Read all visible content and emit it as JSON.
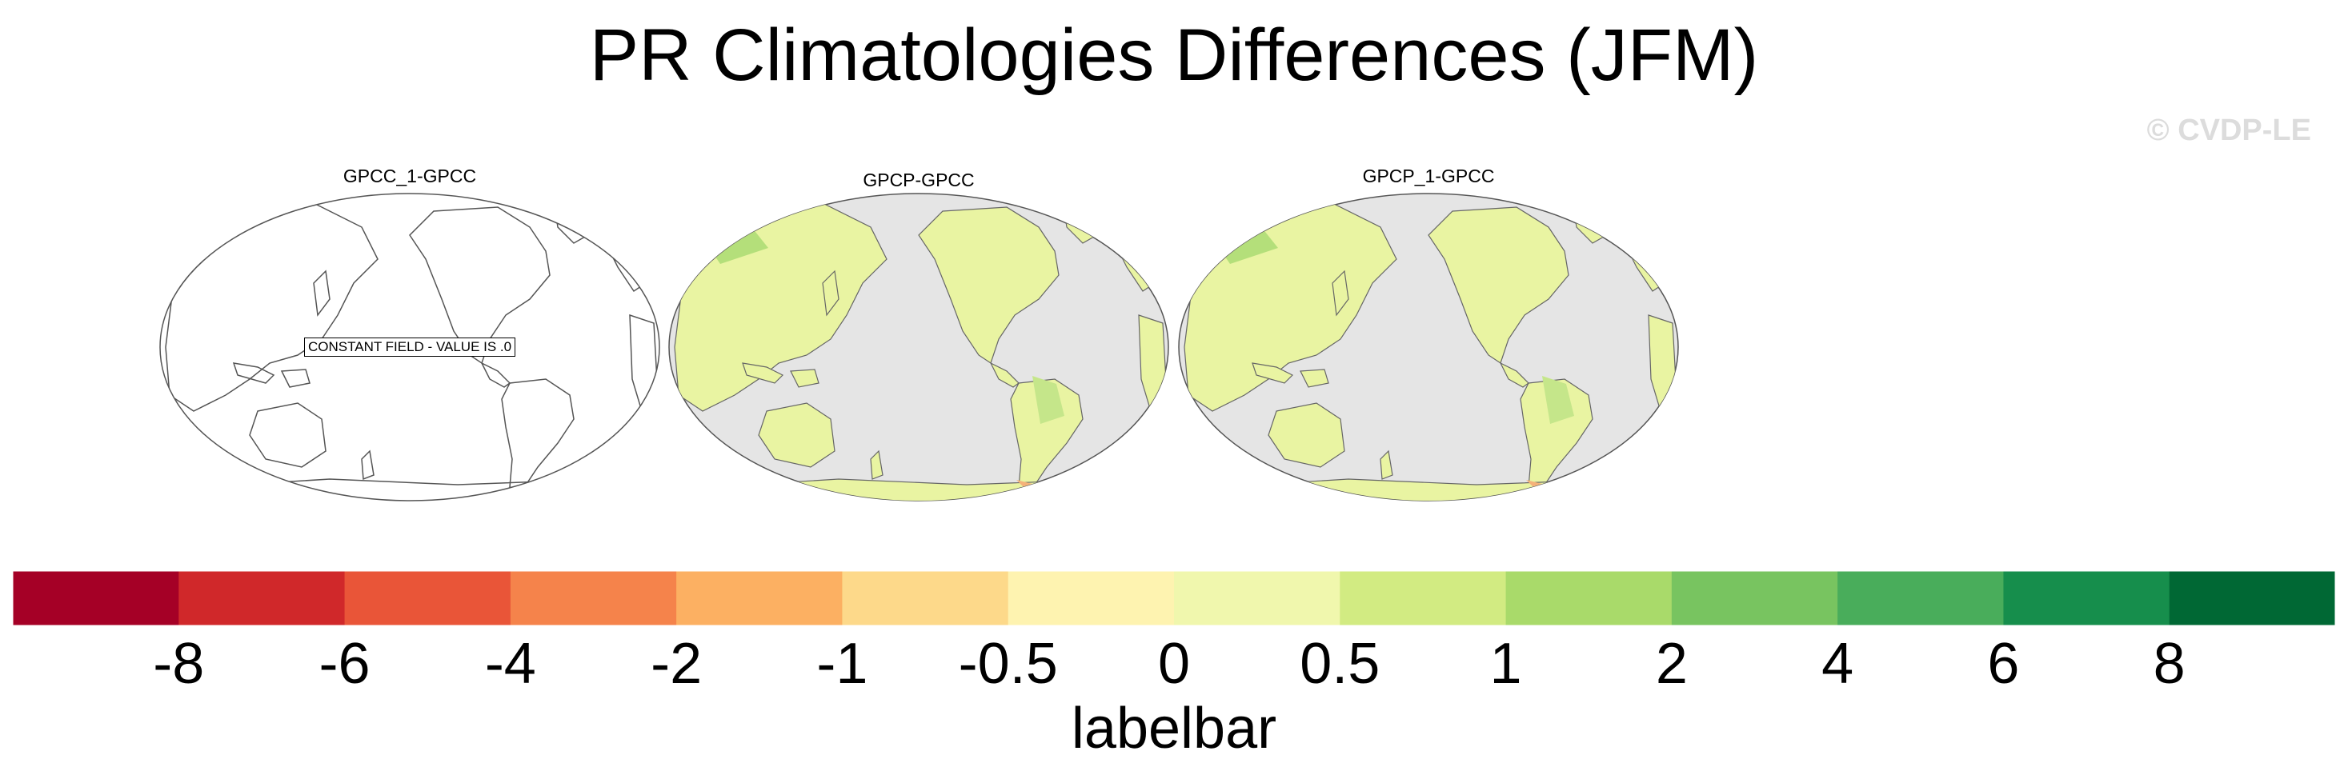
{
  "title": "PR Climatologies Differences (JFM)",
  "watermark": "© CVDP-LE",
  "panels": [
    {
      "name": "GPCC_1-GPCC",
      "type": "constant",
      "note": "CONSTANT FIELD - VALUE IS .0"
    },
    {
      "name": "GPCP-GPCC",
      "type": "field"
    },
    {
      "name": "GPCP_1-GPCC",
      "type": "field"
    }
  ],
  "colorbar": {
    "label": "labelbar",
    "ticks": [
      "-8",
      "-6",
      "-4",
      "-2",
      "-1",
      "-0.5",
      "0",
      "0.5",
      "1",
      "2",
      "4",
      "6",
      "8"
    ],
    "colors": [
      "#a50026",
      "#d0282a",
      "#e95538",
      "#f5834b",
      "#fcb062",
      "#fdd98a",
      "#fef3b0",
      "#f0f7ad",
      "#d2eb82",
      "#a9da6a",
      "#78c460",
      "#49ad5b",
      "#168e4c",
      "#006834"
    ],
    "ocean_color": "#e5e5e5",
    "land_color": "#e9f4a2"
  }
}
